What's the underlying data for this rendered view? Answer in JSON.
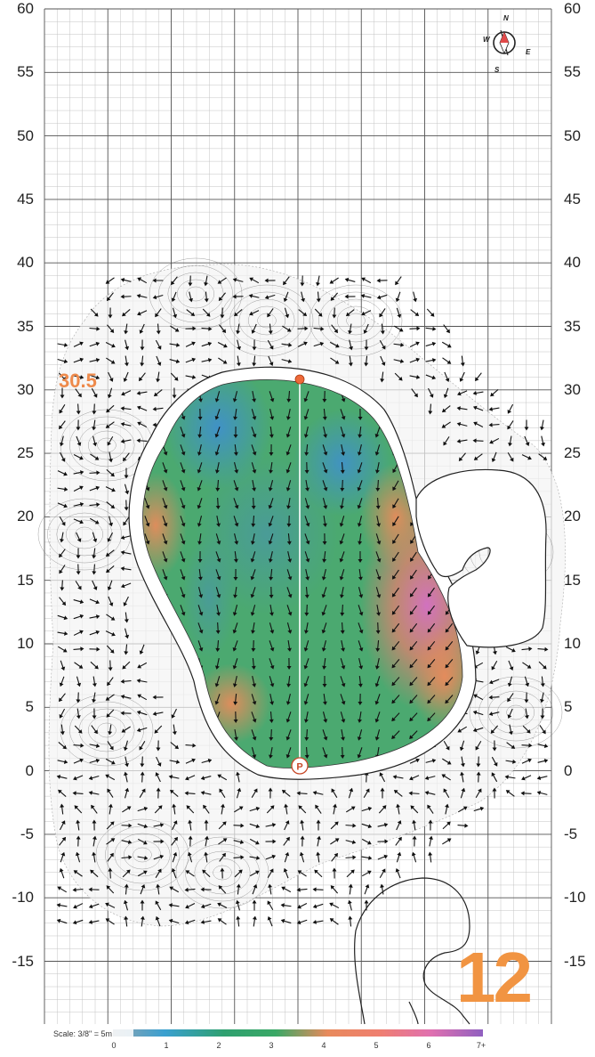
{
  "y_axis_labels": [
    "60",
    "55",
    "50",
    "45",
    "40",
    "35",
    "30",
    "25",
    "20",
    "15",
    "10",
    "5",
    "0",
    "-5",
    "-10",
    "-15"
  ],
  "front_distance": "30.5",
  "hole_number": "12",
  "scale_text": "Scale: 3/8\" = 5m",
  "pin_label": "P",
  "compass": {
    "n": "N",
    "s": "S",
    "e": "E",
    "w": "W"
  },
  "slope_legend": {
    "labels": [
      "0",
      "1",
      "2",
      "3",
      "4",
      "5",
      "6",
      "7+"
    ],
    "colors": [
      "#8ea3b0",
      "#3aa0d0",
      "#2fa070",
      "#3aa866",
      "#e88a5c",
      "#ef7f70",
      "#e070b0",
      "#9060c0"
    ]
  },
  "colors": {
    "green_fill": "#4fae6a",
    "fringe_orange": "#ee8a4b",
    "grid_major": "#555555",
    "grid_minor": "#b8b8b8"
  }
}
